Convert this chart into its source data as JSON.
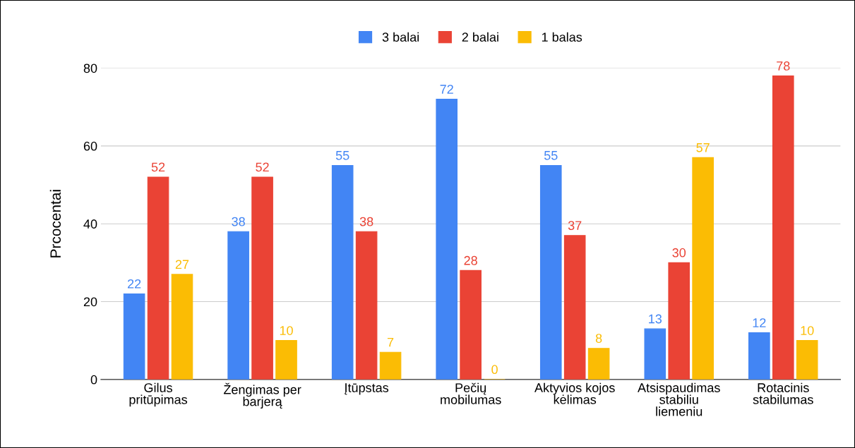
{
  "chart_data": {
    "type": "bar",
    "ylabel": "Prcocentai",
    "categories": [
      "Gilus\npritūpimas",
      "Žengimas per\nbarjerą",
      "Įtūpstas",
      "Pečių\nmobilumas",
      "Aktyvios kojos\nkėlimas",
      "Atsispaudimas\nstabiliu\nliemeniu",
      "Rotacinis\nstabilumas"
    ],
    "series": [
      {
        "name": "3 balai",
        "color": "#4285f4",
        "values": [
          22,
          38,
          55,
          72,
          55,
          13,
          12
        ]
      },
      {
        "name": "2 balai",
        "color": "#ea4335",
        "values": [
          52,
          52,
          38,
          28,
          37,
          30,
          78
        ]
      },
      {
        "name": "1 balas",
        "color": "#fbbc04",
        "values": [
          27,
          10,
          7,
          0,
          8,
          57,
          10
        ]
      }
    ],
    "ylim": [
      0,
      80
    ],
    "yticks": [
      0,
      20,
      40,
      60,
      80
    ],
    "grid": "y",
    "legend": "top",
    "data_labels": true
  }
}
